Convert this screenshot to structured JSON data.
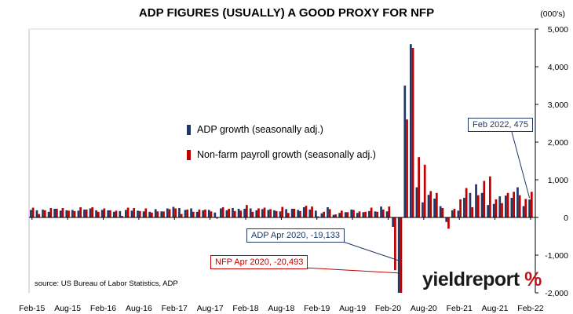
{
  "chart_data": {
    "type": "bar",
    "title": "ADP FIGURES (USUALLY) A GOOD PROXY FOR NFP",
    "unit_label": "(000's)",
    "source": "source: US Bureau of Labor Statistics, ADP",
    "ylim": [
      -2000,
      5000
    ],
    "y_ticks": [
      -2000,
      -1000,
      0,
      1000,
      2000,
      3000,
      4000,
      5000
    ],
    "y_tick_labels": [
      "-2,000",
      "-1,000",
      "0",
      "1,000",
      "2,000",
      "3,000",
      "4,000",
      "5,000"
    ],
    "x_tick_labels": [
      "Feb-15",
      "Aug-15",
      "Feb-16",
      "Aug-16",
      "Feb-17",
      "Aug-17",
      "Feb-18",
      "Aug-18",
      "Feb-19",
      "Aug-19",
      "Feb-20",
      "Aug-20",
      "Feb-21",
      "Aug-21",
      "Feb-22"
    ],
    "y_axis_position": "right",
    "grid": false,
    "legend_position": "middle-left",
    "colors": {
      "adp": "#1f3864",
      "nfp": "#c00000"
    },
    "categories": [
      "Feb-15",
      "Mar-15",
      "Apr-15",
      "May-15",
      "Jun-15",
      "Jul-15",
      "Aug-15",
      "Sep-15",
      "Oct-15",
      "Nov-15",
      "Dec-15",
      "Jan-16",
      "Feb-16",
      "Mar-16",
      "Apr-16",
      "May-16",
      "Jun-16",
      "Jul-16",
      "Aug-16",
      "Sep-16",
      "Oct-16",
      "Nov-16",
      "Dec-16",
      "Jan-17",
      "Feb-17",
      "Mar-17",
      "Apr-17",
      "May-17",
      "Jun-17",
      "Jul-17",
      "Aug-17",
      "Sep-17",
      "Oct-17",
      "Nov-17",
      "Dec-17",
      "Jan-18",
      "Feb-18",
      "Mar-18",
      "Apr-18",
      "May-18",
      "Jun-18",
      "Jul-18",
      "Aug-18",
      "Sep-18",
      "Oct-18",
      "Nov-18",
      "Dec-18",
      "Jan-19",
      "Feb-19",
      "Mar-19",
      "Apr-19",
      "May-19",
      "Jun-19",
      "Jul-19",
      "Aug-19",
      "Sep-19",
      "Oct-19",
      "Nov-19",
      "Dec-19",
      "Jan-20",
      "Feb-20",
      "Mar-20",
      "Apr-20",
      "May-20",
      "Jun-20",
      "Jul-20",
      "Aug-20",
      "Sep-20",
      "Oct-20",
      "Nov-20",
      "Dec-20",
      "Jan-21",
      "Feb-21",
      "Mar-21",
      "Apr-21",
      "May-21",
      "Jun-21",
      "Jul-21",
      "Aug-21",
      "Sep-21",
      "Oct-21",
      "Nov-21",
      "Dec-21",
      "Jan-22",
      "Feb-22"
    ],
    "series": [
      {
        "name": "ADP growth (seasonally adj.)",
        "values": [
          200,
          190,
          210,
          150,
          230,
          180,
          190,
          200,
          180,
          210,
          240,
          190,
          200,
          190,
          150,
          170,
          200,
          180,
          180,
          160,
          150,
          220,
          160,
          240,
          280,
          250,
          200,
          240,
          150,
          190,
          200,
          130,
          240,
          190,
          250,
          230,
          230,
          240,
          190,
          220,
          200,
          190,
          160,
          220,
          230,
          200,
          270,
          210,
          180,
          110,
          270,
          70,
          120,
          140,
          210,
          120,
          140,
          170,
          160,
          290,
          160,
          -250,
          -2000,
          3500,
          4600,
          800,
          400,
          600,
          500,
          300,
          -120,
          190,
          180,
          520,
          650,
          880,
          650,
          330,
          360,
          560,
          580,
          520,
          800,
          300,
          475
        ]
      },
      {
        "name": "Non-farm payroll growth (seasonally adj.)",
        "values": [
          260,
          90,
          190,
          250,
          230,
          250,
          180,
          170,
          270,
          210,
          270,
          150,
          240,
          190,
          180,
          40,
          260,
          250,
          170,
          240,
          130,
          160,
          160,
          220,
          240,
          90,
          210,
          150,
          210,
          210,
          160,
          -30,
          270,
          230,
          170,
          180,
          330,
          150,
          240,
          260,
          220,
          170,
          280,
          120,
          230,
          170,
          310,
          290,
          30,
          150,
          220,
          80,
          180,
          140,
          200,
          160,
          150,
          260,
          150,
          210,
          290,
          -1400,
          -2000,
          2600,
          4500,
          1600,
          1400,
          700,
          650,
          250,
          -300,
          230,
          480,
          780,
          270,
          590,
          970,
          1090,
          480,
          380,
          650,
          680,
          590,
          490,
          680
        ]
      }
    ],
    "annotations": [
      {
        "text": "ADP Apr 2020, -19,133",
        "category": "Apr-20"
      },
      {
        "text": "NFP Apr 2020, -20,493",
        "category": "Apr-20"
      },
      {
        "text": "Feb 2022, 475",
        "category": "Feb-22"
      }
    ],
    "logo": {
      "main": "yieldreport",
      "symbol": "%"
    }
  }
}
